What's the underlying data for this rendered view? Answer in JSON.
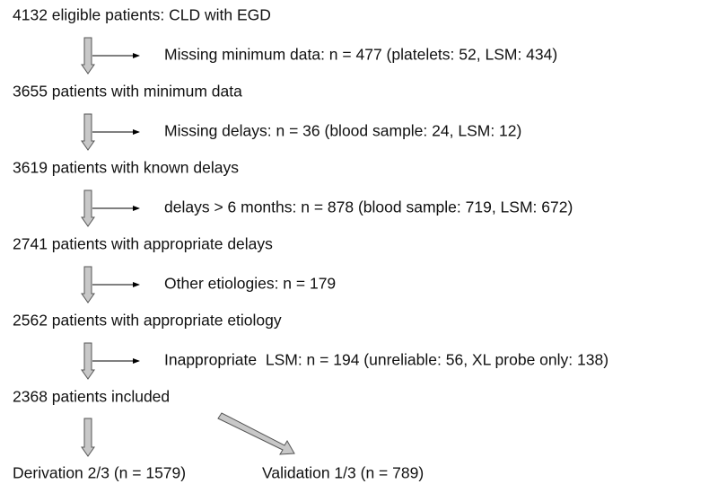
{
  "steps": [
    {
      "label": "4132 eligible patients: CLD with EGD",
      "excluded": "Missing minimum data: n = 477 (platelets: 52, LSM: 434)"
    },
    {
      "label": "3655 patients with minimum data",
      "excluded": "Missing delays: n = 36 (blood sample: 24, LSM: 12)"
    },
    {
      "label": "3619 patients with known delays",
      "excluded": "delays > 6 months: n = 878 (blood sample: 719, LSM: 672)"
    },
    {
      "label": "2741 patients with appropriate delays",
      "excluded": "Other etiologies: n = 179"
    },
    {
      "label": "2562 patients with appropriate etiology",
      "excluded": "Inappropriate  LSM: n = 194 (unreliable: 56, XL probe only: 138)"
    },
    {
      "label": "2368 patients included"
    }
  ],
  "outcomes": [
    "Derivation 2/3 (n = 1579)",
    "Validation 1/3 (n = 789)"
  ]
}
